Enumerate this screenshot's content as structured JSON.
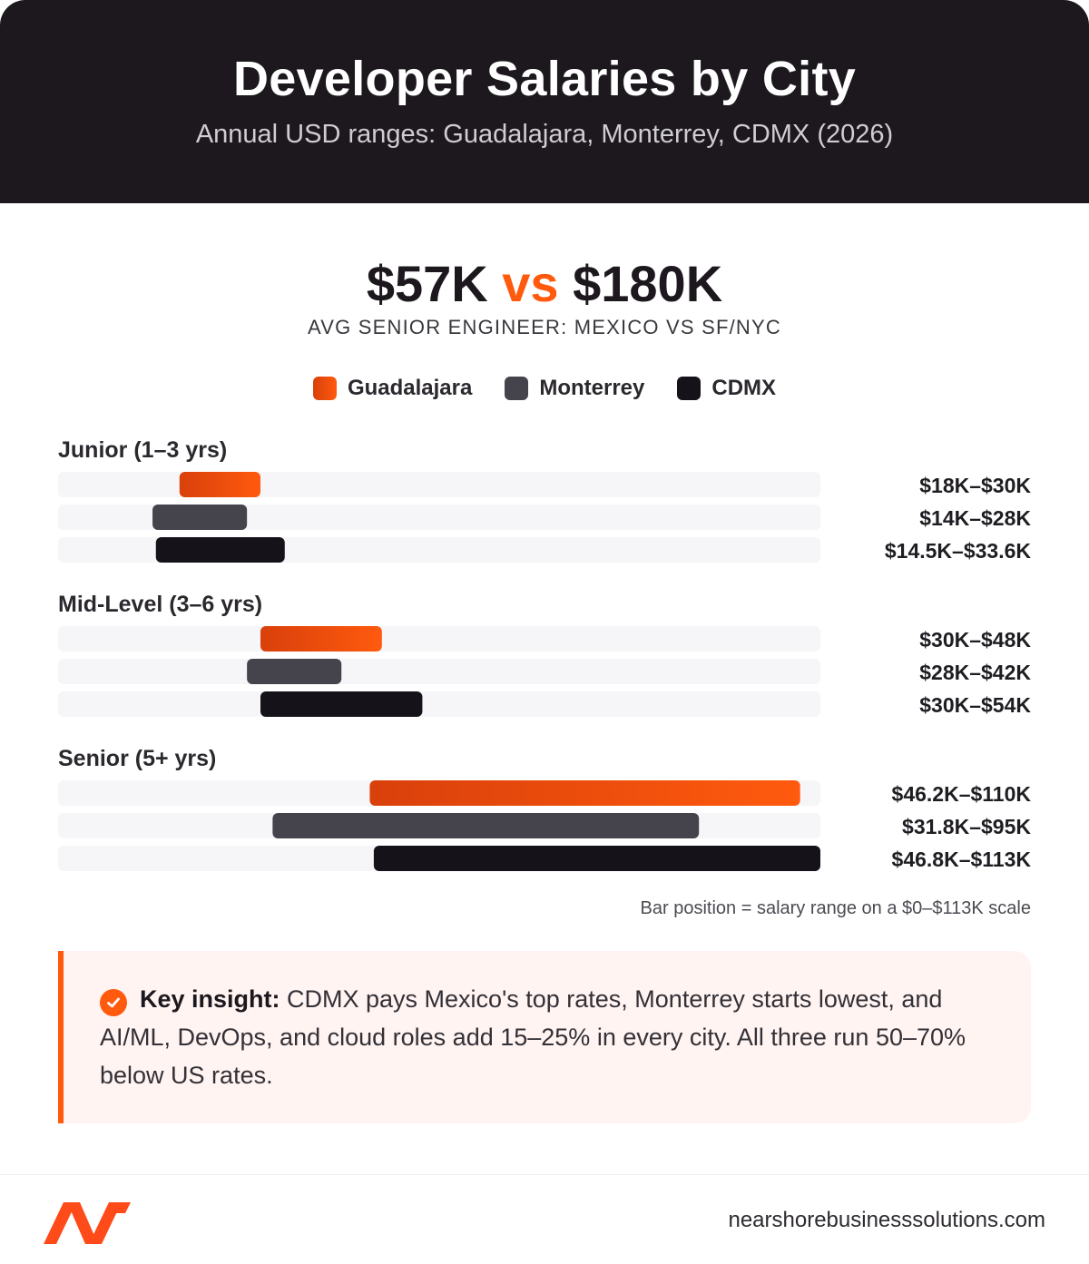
{
  "header": {
    "title": "Developer Salaries by City",
    "subtitle": "Annual USD ranges: Guadalajara, Monterrey, CDMX (2026)"
  },
  "stat": {
    "left": "$57K",
    "vs": "vs",
    "right": "$180K",
    "caption": "AVG SENIOR ENGINEER: MEXICO VS SF/NYC"
  },
  "colors": {
    "guadalajara": "#ff5a0e",
    "guadalajara_dark": "#d9400b",
    "monterrey": "#45434b",
    "cdmx": "#16121a",
    "track": "#f6f5f8"
  },
  "chart_data": {
    "type": "range-bar",
    "title": "",
    "series": [
      {
        "name": "Guadalajara",
        "color": "#ff5a0e"
      },
      {
        "name": "Monterrey",
        "color": "#45434b"
      },
      {
        "name": "CDMX",
        "color": "#16121a"
      }
    ],
    "xlim": [
      0,
      113
    ],
    "unit": "thousand USD",
    "legend_position": "top-center",
    "groups": [
      {
        "label": "Junior (1–3 yrs)",
        "bars": [
          {
            "series": "Guadalajara",
            "min": 18,
            "max": 30,
            "label": "$18K–$30K"
          },
          {
            "series": "Monterrey",
            "min": 14,
            "max": 28,
            "label": "$14K–$28K"
          },
          {
            "series": "CDMX",
            "min": 14.5,
            "max": 33.6,
            "label": "$14.5K–$33.6K"
          }
        ]
      },
      {
        "label": "Mid-Level (3–6 yrs)",
        "bars": [
          {
            "series": "Guadalajara",
            "min": 30,
            "max": 48,
            "label": "$30K–$48K"
          },
          {
            "series": "Monterrey",
            "min": 28,
            "max": 42,
            "label": "$28K–$42K"
          },
          {
            "series": "CDMX",
            "min": 30,
            "max": 54,
            "label": "$30K–$54K"
          }
        ]
      },
      {
        "label": "Senior (5+ yrs)",
        "bars": [
          {
            "series": "Guadalajara",
            "min": 46.2,
            "max": 110,
            "label": "$46.2K–$110K"
          },
          {
            "series": "Monterrey",
            "min": 31.8,
            "max": 95,
            "label": "$31.8K–$95K"
          },
          {
            "series": "CDMX",
            "min": 46.8,
            "max": 113,
            "label": "$46.8K–$113K"
          }
        ]
      }
    ],
    "note": "Bar position = salary range on a $0–$113K scale"
  },
  "insight": {
    "heading": "Key insight:",
    "text": " CDMX pays Mexico's top rates, Monterrey starts lowest, and AI/ML, DevOps, and cloud roles add 15–25% in every city. All three run 50–70% below US rates."
  },
  "footer": {
    "site": "nearshorebusinesssolutions.com"
  }
}
